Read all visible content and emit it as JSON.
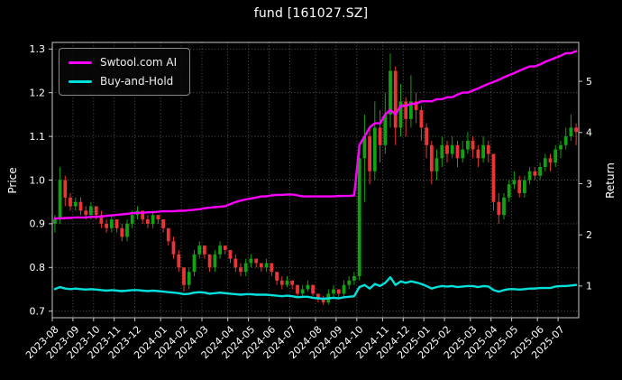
{
  "chart_data": {
    "type": "candlestick+line",
    "title": "fund [161027.SZ]",
    "left_axis": {
      "label": "Price",
      "ticks": [
        0.7,
        0.8,
        0.9,
        1.0,
        1.1,
        1.2,
        1.3
      ],
      "range": [
        0.685,
        1.315
      ]
    },
    "right_axis": {
      "label": "Return",
      "ticks": [
        1,
        2,
        3,
        4,
        5
      ],
      "range": [
        0.38,
        5.76
      ]
    },
    "x_axis": {
      "tick_labels": [
        "2023-08",
        "2023-09",
        "2023-10",
        "2023-11",
        "2023-12",
        "2024-01",
        "2024-02",
        "2024-03",
        "2024-04",
        "2024-05",
        "2024-06",
        "2024-07",
        "2024-08",
        "2024-09",
        "2024-10",
        "2024-11",
        "2024-12",
        "2025-01",
        "2025-02",
        "2025-03",
        "2025-04",
        "2025-05",
        "2025-06",
        "2025-07"
      ],
      "tick_indices": [
        0,
        4,
        8,
        12,
        16,
        21,
        25,
        29,
        34,
        38,
        42,
        46,
        51,
        55,
        59,
        64,
        68,
        72,
        76,
        81,
        85,
        89,
        94,
        98
      ]
    },
    "legend": [
      {
        "label": "Swtool.com AI",
        "color": "#ff00ff"
      },
      {
        "label": "Buy-and-Hold",
        "color": "#00e1dc"
      }
    ],
    "colors": {
      "background": "#000000",
      "up": "#12a112",
      "down": "#e83535",
      "grid": "#5f5f5f",
      "spine": "#c8c8c8",
      "text": "#ffffff",
      "ai_line": "#ff00ff",
      "bh_line": "#00e1dc"
    },
    "grid": true,
    "candles_ohlc": [
      [
        0.9,
        0.92,
        0.88,
        0.91
      ],
      [
        0.91,
        1.03,
        0.9,
        1.0
      ],
      [
        1.0,
        1.01,
        0.94,
        0.96
      ],
      [
        0.96,
        0.97,
        0.93,
        0.94
      ],
      [
        0.94,
        0.96,
        0.93,
        0.95
      ],
      [
        0.95,
        0.96,
        0.92,
        0.93
      ],
      [
        0.93,
        0.94,
        0.91,
        0.92
      ],
      [
        0.92,
        0.95,
        0.91,
        0.94
      ],
      [
        0.94,
        0.94,
        0.91,
        0.92
      ],
      [
        0.92,
        0.93,
        0.89,
        0.9
      ],
      [
        0.9,
        0.91,
        0.88,
        0.89
      ],
      [
        0.89,
        0.92,
        0.88,
        0.91
      ],
      [
        0.91,
        0.91,
        0.88,
        0.89
      ],
      [
        0.89,
        0.9,
        0.86,
        0.87
      ],
      [
        0.87,
        0.91,
        0.86,
        0.9
      ],
      [
        0.9,
        0.93,
        0.89,
        0.92
      ],
      [
        0.92,
        0.94,
        0.91,
        0.93
      ],
      [
        0.93,
        0.93,
        0.9,
        0.91
      ],
      [
        0.91,
        0.92,
        0.89,
        0.9
      ],
      [
        0.9,
        0.93,
        0.89,
        0.92
      ],
      [
        0.92,
        0.92,
        0.9,
        0.91
      ],
      [
        0.91,
        0.91,
        0.88,
        0.89
      ],
      [
        0.89,
        0.89,
        0.85,
        0.86
      ],
      [
        0.86,
        0.87,
        0.82,
        0.83
      ],
      [
        0.83,
        0.84,
        0.79,
        0.8
      ],
      [
        0.8,
        0.8,
        0.745,
        0.76
      ],
      [
        0.76,
        0.8,
        0.75,
        0.79
      ],
      [
        0.79,
        0.84,
        0.78,
        0.83
      ],
      [
        0.83,
        0.86,
        0.82,
        0.85
      ],
      [
        0.85,
        0.85,
        0.82,
        0.83
      ],
      [
        0.83,
        0.83,
        0.79,
        0.8
      ],
      [
        0.8,
        0.84,
        0.79,
        0.83
      ],
      [
        0.83,
        0.86,
        0.82,
        0.85
      ],
      [
        0.85,
        0.85,
        0.83,
        0.84
      ],
      [
        0.84,
        0.84,
        0.81,
        0.82
      ],
      [
        0.82,
        0.83,
        0.79,
        0.8
      ],
      [
        0.8,
        0.81,
        0.78,
        0.79
      ],
      [
        0.79,
        0.82,
        0.78,
        0.81
      ],
      [
        0.81,
        0.83,
        0.8,
        0.82
      ],
      [
        0.82,
        0.82,
        0.8,
        0.81
      ],
      [
        0.81,
        0.81,
        0.79,
        0.8
      ],
      [
        0.8,
        0.82,
        0.79,
        0.81
      ],
      [
        0.81,
        0.81,
        0.78,
        0.79
      ],
      [
        0.79,
        0.79,
        0.76,
        0.77
      ],
      [
        0.77,
        0.78,
        0.75,
        0.76
      ],
      [
        0.76,
        0.78,
        0.755,
        0.77
      ],
      [
        0.77,
        0.77,
        0.75,
        0.76
      ],
      [
        0.76,
        0.76,
        0.73,
        0.74
      ],
      [
        0.74,
        0.76,
        0.735,
        0.75
      ],
      [
        0.75,
        0.77,
        0.745,
        0.76
      ],
      [
        0.76,
        0.76,
        0.735,
        0.74
      ],
      [
        0.74,
        0.74,
        0.72,
        0.73
      ],
      [
        0.73,
        0.735,
        0.715,
        0.72
      ],
      [
        0.72,
        0.75,
        0.715,
        0.74
      ],
      [
        0.74,
        0.76,
        0.73,
        0.75
      ],
      [
        0.75,
        0.75,
        0.73,
        0.74
      ],
      [
        0.74,
        0.77,
        0.735,
        0.76
      ],
      [
        0.76,
        0.78,
        0.75,
        0.77
      ],
      [
        0.77,
        0.79,
        0.76,
        0.78
      ],
      [
        0.78,
        1.08,
        0.77,
        1.05
      ],
      [
        1.05,
        1.15,
        0.95,
        1.1
      ],
      [
        1.1,
        1.12,
        0.99,
        1.02
      ],
      [
        1.02,
        1.18,
        1.0,
        1.12
      ],
      [
        1.12,
        1.16,
        1.04,
        1.08
      ],
      [
        1.08,
        1.2,
        1.06,
        1.15
      ],
      [
        1.15,
        1.29,
        1.12,
        1.25
      ],
      [
        1.25,
        1.26,
        1.08,
        1.12
      ],
      [
        1.12,
        1.22,
        1.1,
        1.18
      ],
      [
        1.18,
        1.19,
        1.1,
        1.14
      ],
      [
        1.14,
        1.24,
        1.12,
        1.18
      ],
      [
        1.18,
        1.2,
        1.13,
        1.16
      ],
      [
        1.16,
        1.17,
        1.09,
        1.12
      ],
      [
        1.12,
        1.13,
        1.05,
        1.08
      ],
      [
        1.08,
        1.09,
        0.99,
        1.02
      ],
      [
        1.02,
        1.07,
        1.0,
        1.05
      ],
      [
        1.05,
        1.1,
        1.03,
        1.08
      ],
      [
        1.08,
        1.09,
        1.04,
        1.06
      ],
      [
        1.06,
        1.1,
        1.05,
        1.08
      ],
      [
        1.08,
        1.09,
        1.03,
        1.05
      ],
      [
        1.05,
        1.09,
        1.04,
        1.07
      ],
      [
        1.07,
        1.11,
        1.06,
        1.09
      ],
      [
        1.09,
        1.1,
        1.05,
        1.07
      ],
      [
        1.07,
        1.08,
        1.03,
        1.05
      ],
      [
        1.05,
        1.1,
        1.04,
        1.08
      ],
      [
        1.08,
        1.09,
        1.04,
        1.06
      ],
      [
        1.06,
        1.06,
        0.93,
        0.95
      ],
      [
        0.95,
        0.97,
        0.9,
        0.92
      ],
      [
        0.92,
        0.97,
        0.91,
        0.96
      ],
      [
        0.96,
        1.0,
        0.95,
        0.99
      ],
      [
        0.99,
        1.02,
        0.98,
        1.0
      ],
      [
        1.0,
        1.01,
        0.96,
        0.97
      ],
      [
        0.97,
        1.01,
        0.96,
        1.0
      ],
      [
        1.0,
        1.03,
        0.99,
        1.02
      ],
      [
        1.02,
        1.03,
        1.0,
        1.01
      ],
      [
        1.01,
        1.04,
        1.0,
        1.03
      ],
      [
        1.03,
        1.06,
        1.02,
        1.05
      ],
      [
        1.05,
        1.06,
        1.02,
        1.04
      ],
      [
        1.04,
        1.08,
        1.03,
        1.07
      ],
      [
        1.07,
        1.09,
        1.05,
        1.08
      ],
      [
        1.08,
        1.12,
        1.07,
        1.1
      ],
      [
        1.1,
        1.15,
        1.09,
        1.12
      ],
      [
        1.12,
        1.13,
        1.08,
        1.11
      ]
    ],
    "series": [
      {
        "name": "Swtool.com AI",
        "axis": "right",
        "values": [
          2.32,
          2.32,
          2.33,
          2.33,
          2.34,
          2.34,
          2.34,
          2.35,
          2.35,
          2.36,
          2.37,
          2.38,
          2.39,
          2.4,
          2.41,
          2.42,
          2.43,
          2.43,
          2.44,
          2.44,
          2.45,
          2.46,
          2.46,
          2.46,
          2.47,
          2.47,
          2.48,
          2.49,
          2.5,
          2.52,
          2.53,
          2.54,
          2.55,
          2.56,
          2.6,
          2.64,
          2.67,
          2.69,
          2.71,
          2.73,
          2.75,
          2.75,
          2.77,
          2.78,
          2.78,
          2.79,
          2.79,
          2.77,
          2.75,
          2.75,
          2.75,
          2.75,
          2.75,
          2.75,
          2.75,
          2.76,
          2.76,
          2.76,
          2.77,
          3.75,
          3.92,
          4.1,
          4.18,
          4.18,
          4.35,
          4.44,
          4.35,
          4.52,
          4.52,
          4.56,
          4.56,
          4.61,
          4.61,
          4.61,
          4.65,
          4.65,
          4.69,
          4.69,
          4.74,
          4.78,
          4.78,
          4.82,
          4.86,
          4.91,
          4.95,
          4.99,
          5.03,
          5.08,
          5.12,
          5.16,
          5.21,
          5.25,
          5.29,
          5.29,
          5.33,
          5.38,
          5.42,
          5.46,
          5.5,
          5.55,
          5.55,
          5.59
        ]
      },
      {
        "name": "Buy-and-Hold",
        "axis": "right",
        "values": [
          0.94,
          0.98,
          0.95,
          0.94,
          0.95,
          0.94,
          0.93,
          0.94,
          0.93,
          0.92,
          0.91,
          0.92,
          0.91,
          0.9,
          0.91,
          0.92,
          0.92,
          0.91,
          0.9,
          0.91,
          0.9,
          0.89,
          0.88,
          0.87,
          0.86,
          0.84,
          0.85,
          0.87,
          0.88,
          0.87,
          0.85,
          0.86,
          0.87,
          0.86,
          0.85,
          0.84,
          0.83,
          0.84,
          0.84,
          0.83,
          0.83,
          0.83,
          0.82,
          0.81,
          0.8,
          0.81,
          0.8,
          0.78,
          0.79,
          0.79,
          0.77,
          0.76,
          0.75,
          0.76,
          0.77,
          0.76,
          0.78,
          0.79,
          0.8,
          0.98,
          1.02,
          0.95,
          1.04,
          1.0,
          1.06,
          1.17,
          1.02,
          1.09,
          1.06,
          1.09,
          1.07,
          1.04,
          1.0,
          0.95,
          0.98,
          1.0,
          0.99,
          1.0,
          0.98,
          0.99,
          1.0,
          1.0,
          0.98,
          1.0,
          0.99,
          0.92,
          0.89,
          0.92,
          0.94,
          0.94,
          0.93,
          0.94,
          0.95,
          0.95,
          0.96,
          0.96,
          0.96,
          0.99,
          1.0,
          1.0,
          1.01,
          1.02
        ]
      }
    ]
  }
}
